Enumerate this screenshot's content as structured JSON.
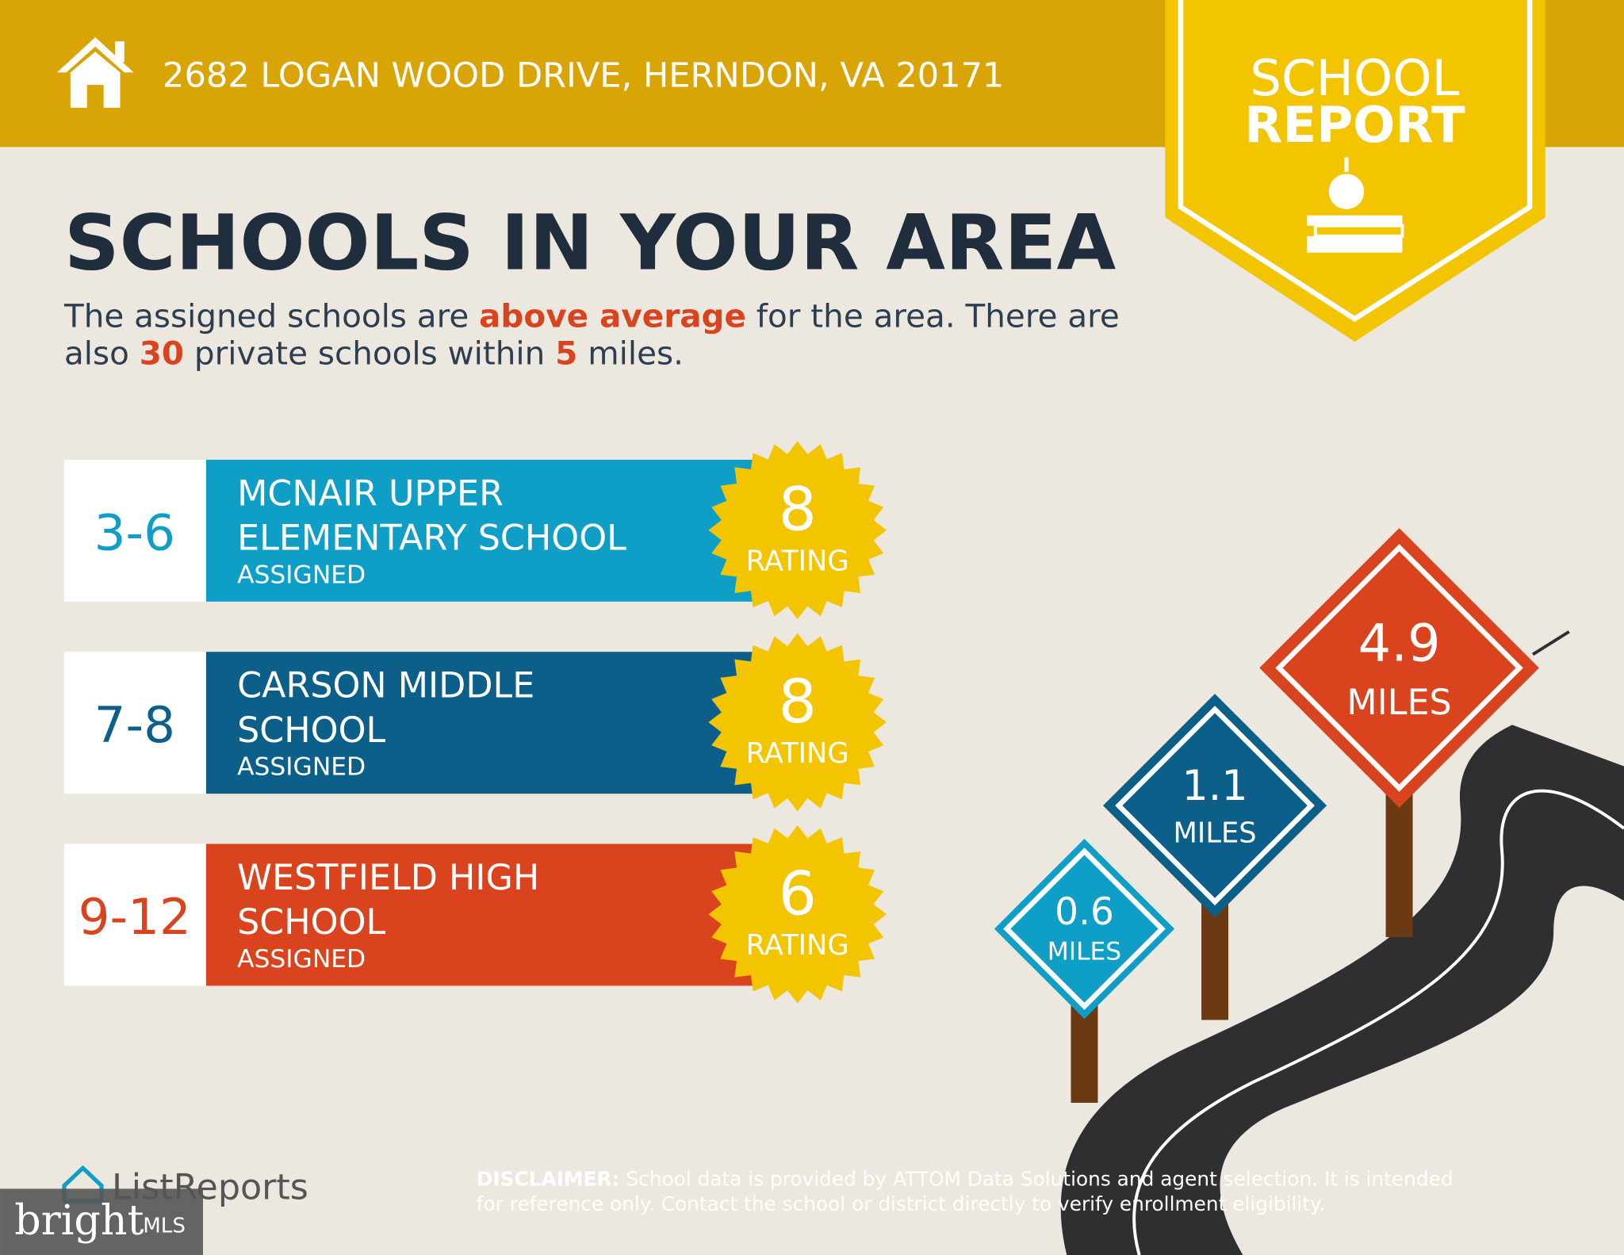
{
  "header": {
    "address": "2682 LOGAN WOOD DRIVE, HERNDON, VA 20171"
  },
  "badge": {
    "line1": "SCHOOL",
    "line2": "REPORT"
  },
  "title": "SCHOOLS IN YOUR AREA",
  "intro": {
    "lines": [
      [
        "The assigned schools are ",
        "above average",
        " for the area. There are"
      ],
      [
        "also ",
        "30",
        " private schools within ",
        "5",
        " miles."
      ]
    ]
  },
  "schools": [
    {
      "grades": "3-6",
      "name": [
        "MCNAIR UPPER",
        "ELEMENTARY SCHOOL"
      ],
      "status": "ASSIGNED",
      "rating": "8",
      "rating_label": "RATING",
      "color": "#0e9ec6"
    },
    {
      "grades": "7-8",
      "name": [
        "CARSON MIDDLE",
        "SCHOOL"
      ],
      "status": "ASSIGNED",
      "rating": "8",
      "rating_label": "RATING",
      "color": "#0b5f89"
    },
    {
      "grades": "9-12",
      "name": [
        "WESTFIELD HIGH",
        "SCHOOL"
      ],
      "status": "ASSIGNED",
      "rating": "6",
      "rating_label": "RATING",
      "color": "#d9441e"
    }
  ],
  "distances": [
    {
      "value": "0.6",
      "unit": "MILES"
    },
    {
      "value": "1.1",
      "unit": "MILES"
    },
    {
      "value": "4.9",
      "unit": "MILES"
    }
  ],
  "footer": {
    "brand": "ListReports",
    "disclaimer_label": "DISCLAIMER:",
    "disclaimer": [
      " School data is provided by ATTOM Data Solutions and agent selection. It is intended",
      "for reference only. Contact the school or district directly to verify enrollment eligibility."
    ],
    "watermark": "bright",
    "watermark_suffix": "MLS"
  }
}
